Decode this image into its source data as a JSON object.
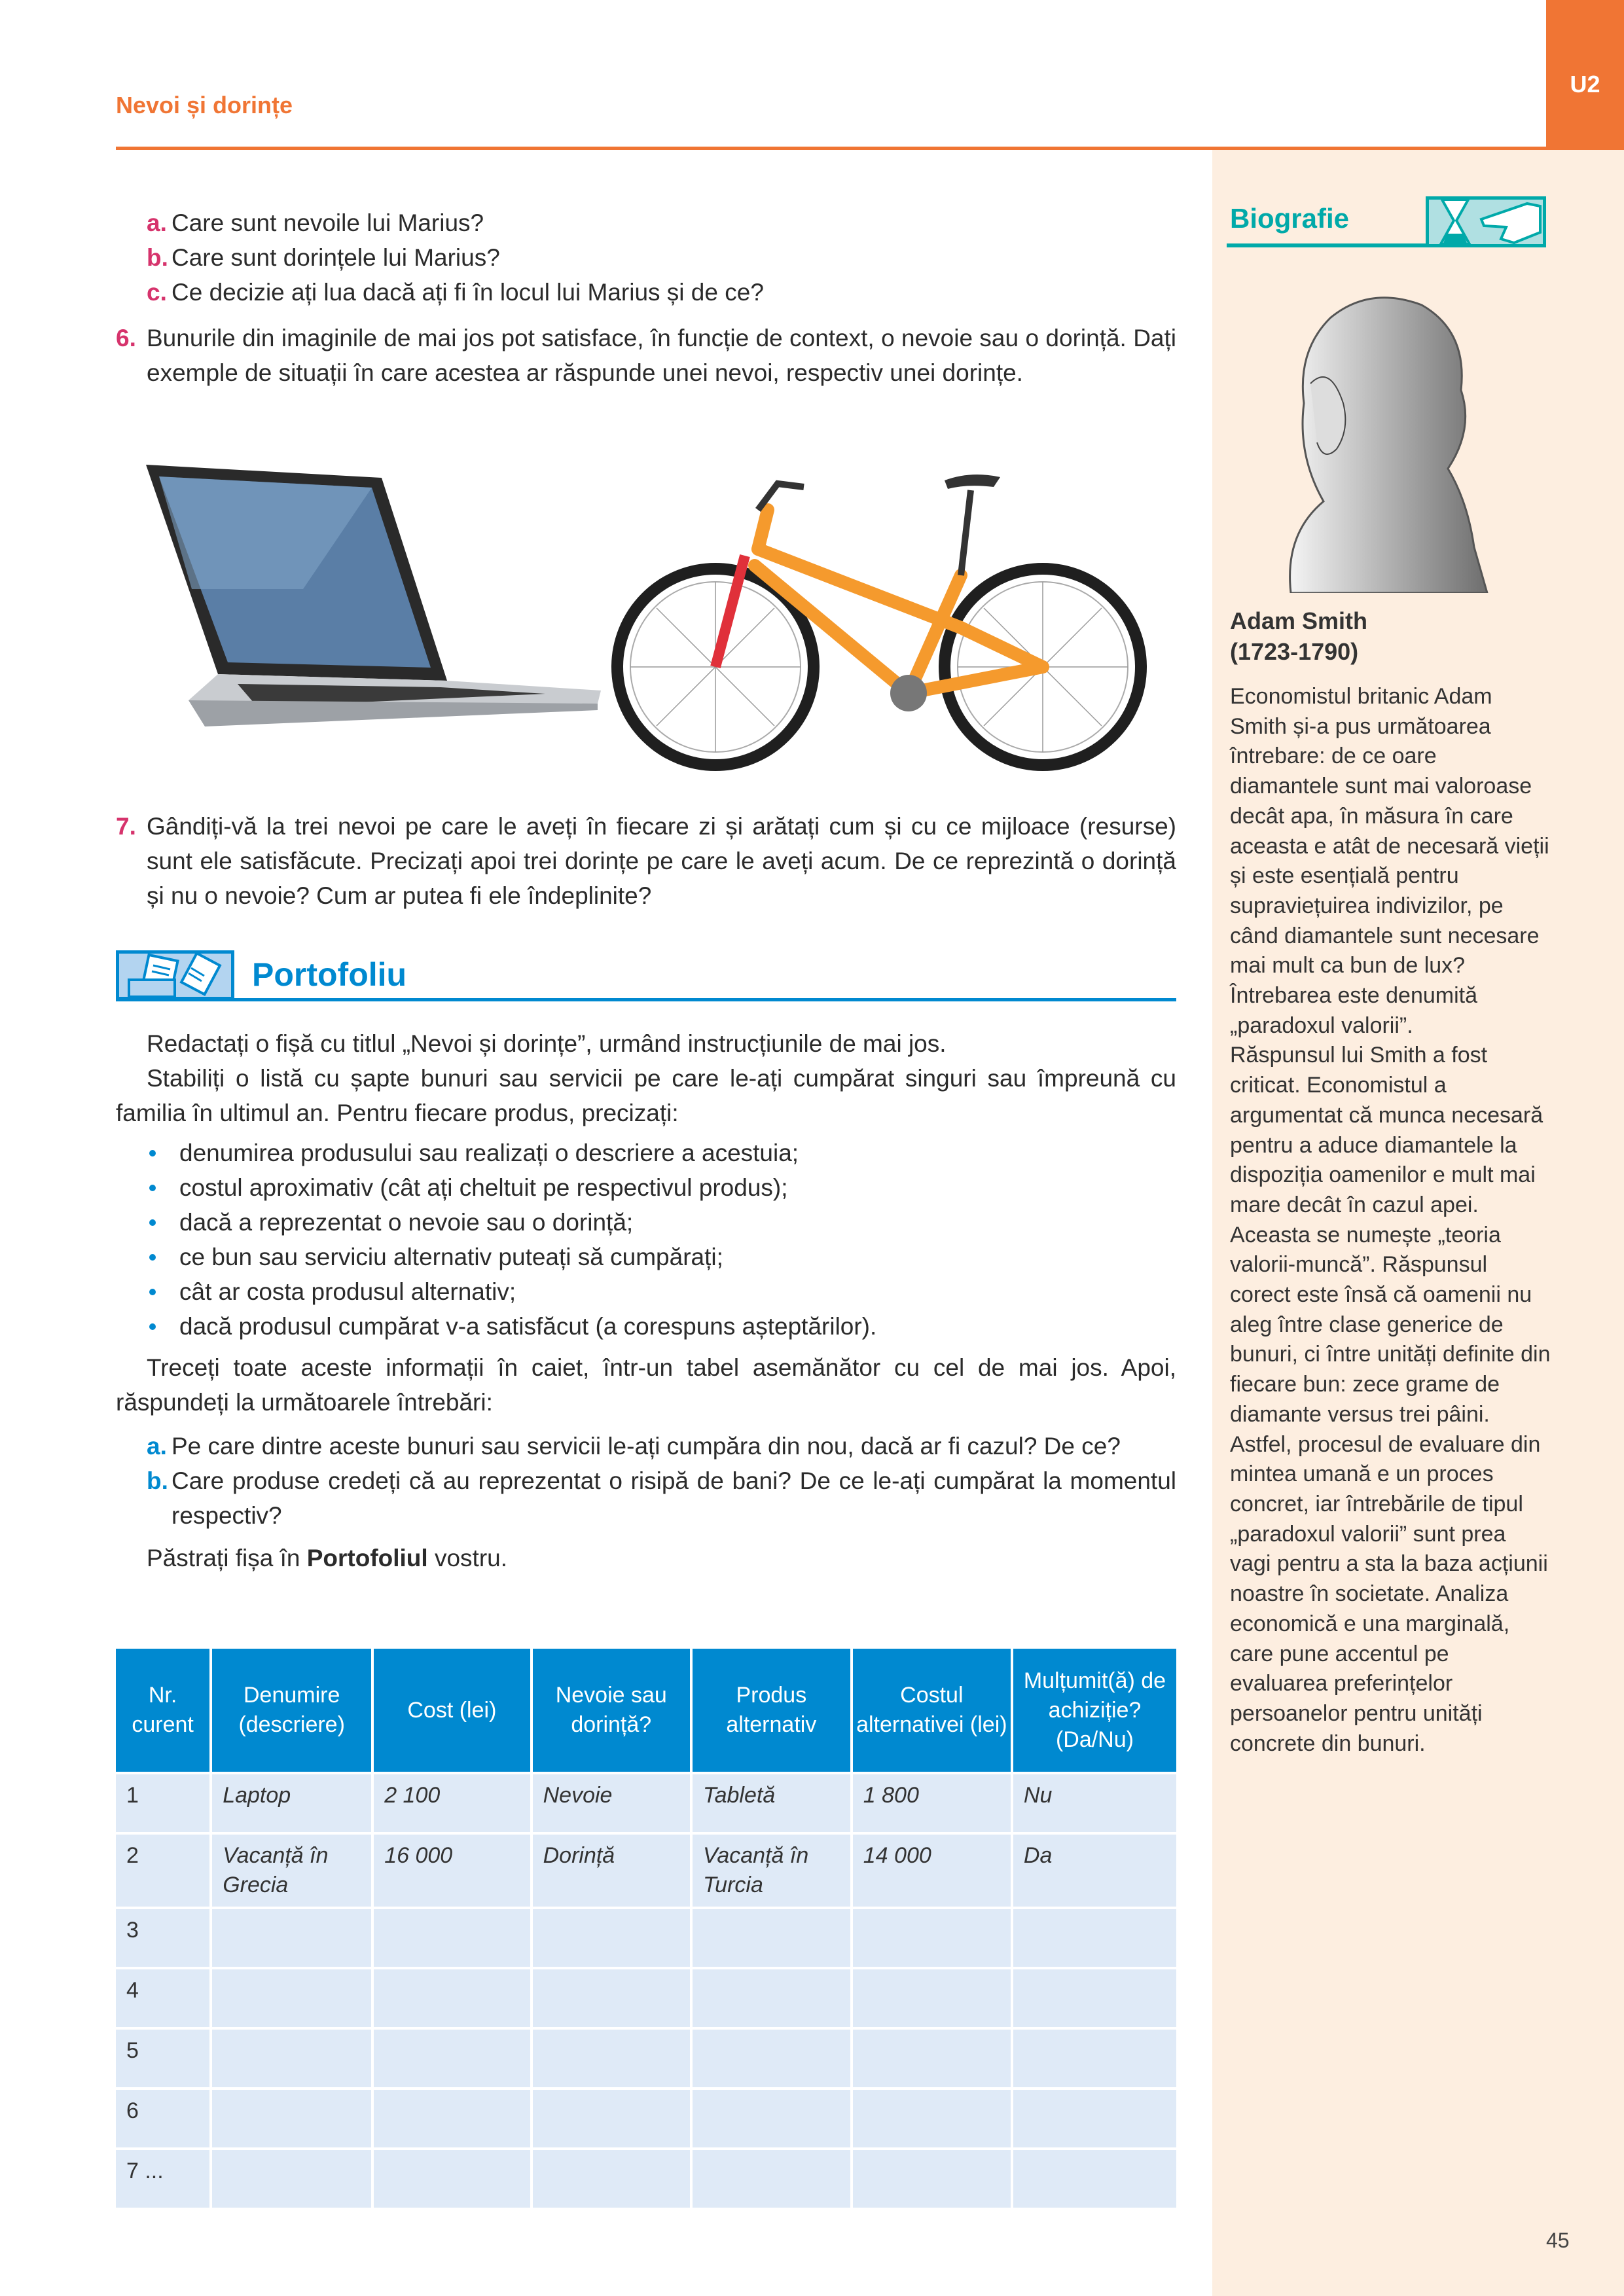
{
  "header": {
    "title": "Nevoi și dorințe",
    "unit": "U2",
    "accent": "#f07534"
  },
  "questions_top": [
    {
      "letter": "a.",
      "text": "Care sunt nevoile lui Marius?"
    },
    {
      "letter": "b.",
      "text": "Care sunt dorințele lui Marius?"
    },
    {
      "letter": "c.",
      "text": "Ce decizie ați lua dacă ați fi în locul lui Marius și de ce?"
    }
  ],
  "q6": {
    "num": "6.",
    "text": "Bunurile din imaginile de mai jos pot satisface, în funcție de context, o nevoie sau o dorință. Dați exemple de situații în care acestea ar răspunde unei nevoi, respectiv unei dorințe."
  },
  "images": {
    "laptop": "laptop",
    "bike": "bicycle"
  },
  "q7": {
    "num": "7.",
    "text": "Gândiți-vă la trei nevoi pe care le aveți în fiecare zi și arătați cum și cu ce mijloace (resurse) sunt ele satisfăcute. Precizați apoi trei dorințe pe care le aveți acum. De ce reprezintă o dorință și nu o nevoie? Cum ar putea fi ele îndeplinite?"
  },
  "portofoliu": {
    "title": "Portofoliu",
    "icon": "documents-icon",
    "intro1": "Redactați o fișă cu titlul „Nevoi și dorințe”, urmând instrucțiunile de mai jos.",
    "intro2": "Stabiliți o listă cu șapte bunuri sau servicii pe care le-ați cumpărat singuri sau împreună cu familia în ultimul an. Pentru fiecare produs, precizați:",
    "bullets": [
      "denumirea produsului sau realizați o descriere a acestuia;",
      "costul aproximativ (cât ați cheltuit pe respectivul produs);",
      "dacă a reprezentat o nevoie sau o dorință;",
      "ce bun sau serviciu alternativ puteați să cumpărați;",
      "cât ar costa produsul alternativ;",
      "dacă produsul cumpărat v-a satisfăcut (a corespuns așteptărilor)."
    ],
    "transfer": "Treceți toate aceste informații în caiet, într-un tabel asemănător cu cel de mai jos. Apoi, răspundeți la următoarele întrebări:",
    "questions": [
      {
        "letter": "a.",
        "text": "Pe care dintre aceste bunuri sau servicii le-ați cumpăra din nou, dacă ar fi cazul? De ce?"
      },
      {
        "letter": "b.",
        "text": "Care produse credeți că au reprezentat o risipă de bani? De ce le-ați cumpărat la momentul respectiv?"
      }
    ],
    "keep_pre": "Păstrați fișa în ",
    "keep_bold": "Portofoliul",
    "keep_post": " vostru."
  },
  "table": {
    "headers": [
      "Nr. curent",
      "Denumire (descriere)",
      "Cost (lei)",
      "Nevoie sau dorință?",
      "Produs alternativ",
      "Costul alternativei (lei)",
      "Mulțumit(ă) de achiziție? (Da/Nu)"
    ],
    "rows": [
      [
        "1",
        "Laptop",
        "2 100",
        "Nevoie",
        "Tabletă",
        "1 800",
        "Nu"
      ],
      [
        "2",
        "Vacanță în Grecia",
        "16 000",
        "Dorință",
        "Vacanță în Turcia",
        "14 000",
        "Da"
      ],
      [
        "3",
        "",
        "",
        "",
        "",
        "",
        ""
      ],
      [
        "4",
        "",
        "",
        "",
        "",
        "",
        ""
      ],
      [
        "5",
        "",
        "",
        "",
        "",
        "",
        ""
      ],
      [
        "6",
        "",
        "",
        "",
        "",
        "",
        ""
      ],
      [
        "7 ...",
        "",
        "",
        "",
        "",
        "",
        ""
      ]
    ]
  },
  "sidebar": {
    "title": "Biografie",
    "icon": "hourglass-pointing-hand-icon",
    "portrait": "portrait-adam-smith",
    "name": "Adam Smith",
    "years": "(1723-1790)",
    "text1": "Economistul britanic Adam Smith și-a pus următoarea întrebare: de ce oare diamantele sunt mai valoroase decât apa, în măsura în care aceasta e atât de necesară vieții și este esențială pentru supraviețuirea indivizilor, pe când diamantele sunt necesare mai mult ca bun de lux? Întrebarea este denumită „paradoxul valorii”.",
    "text2": "Răspunsul lui Smith a fost criticat. Economistul a argumentat că munca necesară pentru a aduce diamantele la dispoziția oamenilor e mult mai mare decât în cazul apei. Aceasta se numește „teoria valorii-muncă”. Răspunsul corect este însă că oamenii nu aleg între clase generice de bunuri, ci între unități definite din fiecare bun: zece grame de diamante versus trei pâini. Astfel, procesul de evaluare din mintea umană e un proces concret, iar întrebările de tipul „paradoxul valorii” sunt prea vagi pentru a sta la baza acțiunii noastre în societate. Analiza economică e una marginală, care pune accentul pe evaluarea preferințelor persoanelor pentru unități concrete din bunuri.",
    "accent": "#00a9a9",
    "background": "#fdeee0"
  },
  "page_number": "45"
}
